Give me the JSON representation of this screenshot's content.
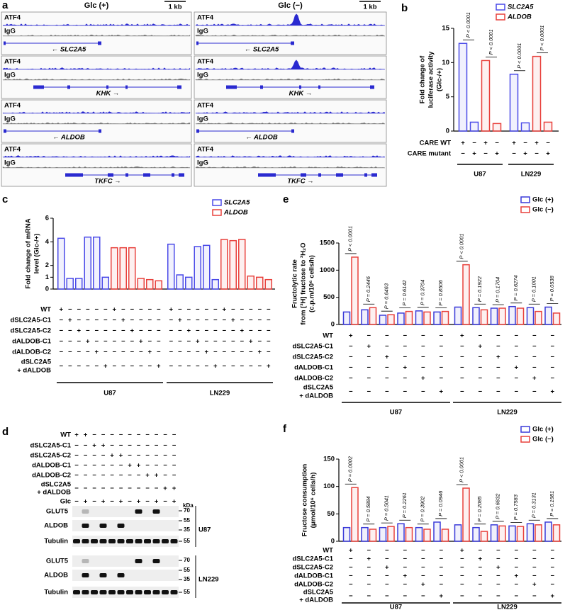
{
  "panel_a": {
    "panel": "a",
    "columns": [
      {
        "title": "Glc (+)",
        "scale": "1 kb"
      },
      {
        "title": "Glc (−)",
        "scale": "1 kb"
      }
    ],
    "tracks": [
      "ATF4",
      "IgG"
    ],
    "genes": [
      "← SLC2A5",
      "KHK →",
      "← ALDOB",
      "TKFC →"
    ]
  },
  "panel_d": {
    "panel": "d",
    "conditions": [
      {
        "label": "WT",
        "signs": [
          "+",
          "+",
          "−",
          "−",
          "−",
          "−",
          "−",
          "−",
          "−",
          "−",
          "−",
          "−"
        ]
      },
      {
        "label": "dSLC2A5-C1",
        "signs": [
          "−",
          "−",
          "+",
          "+",
          "−",
          "−",
          "−",
          "−",
          "−",
          "−",
          "−",
          "−"
        ]
      },
      {
        "label": "dSLC2A5-C2",
        "signs": [
          "−",
          "−",
          "−",
          "−",
          "+",
          "+",
          "−",
          "−",
          "−",
          "−",
          "−",
          "−"
        ]
      },
      {
        "label": "dALDOB-C1",
        "signs": [
          "−",
          "−",
          "−",
          "−",
          "−",
          "−",
          "+",
          "+",
          "−",
          "−",
          "−",
          "−"
        ]
      },
      {
        "label": "dALDOB-C2",
        "signs": [
          "−",
          "−",
          "−",
          "−",
          "−",
          "−",
          "−",
          "−",
          "+",
          "+",
          "−",
          "−"
        ]
      },
      {
        "label": [
          "dSLC2A5",
          "+ dALDOB"
        ],
        "signs": [
          "−",
          "−",
          "−",
          "−",
          "−",
          "−",
          "−",
          "−",
          "−",
          "−",
          "+",
          "+"
        ]
      },
      {
        "label": "Glc",
        "signs": [
          "−",
          "+",
          "−",
          "+",
          "−",
          "+",
          "−",
          "+",
          "−",
          "+",
          "−",
          "+"
        ]
      }
    ],
    "bands": [
      "GLUT5",
      "ALDOB",
      "Tubulin"
    ],
    "unit": "kDa",
    "markers": [
      70,
      55,
      35,
      55
    ],
    "cells": [
      "U87",
      "LN229"
    ]
  },
  "chart_data": [
    {
      "type": "bar",
      "panel": "b",
      "ylabel": [
        "Fold change of",
        "luciferase activity",
        "(Glc-/+)"
      ],
      "ylim": [
        0,
        15
      ],
      "yticks": [
        0,
        5,
        10,
        15
      ],
      "series": [
        {
          "name": "SLC2A5",
          "color": "#4a4ae8",
          "values": [
            12.8,
            1.3,
            8.3,
            1.2
          ]
        },
        {
          "name": "ALDOB",
          "color": "#e8413c",
          "values": [
            10.3,
            1.1,
            10.9,
            1.3
          ]
        }
      ],
      "annotations": [
        "P < 0.0001",
        "P < 0.0001",
        "P < 0.0001",
        "P < 0.0001"
      ],
      "conditions": [
        {
          "label": "CARE WT",
          "signs": [
            "+",
            "−",
            "+",
            "−",
            "+",
            "−",
            "+",
            "−"
          ]
        },
        {
          "label": "CARE mutant",
          "signs": [
            "−",
            "+",
            "−",
            "+",
            "−",
            "+",
            "−",
            "+"
          ]
        }
      ],
      "groups": [
        "U87",
        "LN229"
      ]
    },
    {
      "type": "bar",
      "panel": "c",
      "ylabel": [
        "Fold change of mRNA",
        "level (Glc-/+)"
      ],
      "ylim": [
        0,
        6
      ],
      "yticks": [
        0,
        1,
        2,
        4,
        6
      ],
      "series": [
        {
          "name": "SLC2A5",
          "color": "#4a4ae8",
          "values": [
            4.3,
            0.9,
            0.9,
            4.4,
            4.4,
            1.0,
            3.8,
            1.2,
            1.0,
            3.6,
            3.7,
            0.8
          ]
        },
        {
          "name": "ALDOB",
          "color": "#e8413c",
          "values": [
            3.5,
            3.5,
            3.5,
            0.9,
            0.8,
            0.7,
            4.2,
            4.1,
            4.2,
            1.1,
            1.0,
            0.8
          ]
        }
      ],
      "conditions": [
        {
          "label": "WT",
          "signs": [
            "+",
            "−",
            "−",
            "−",
            "−",
            "−",
            "+",
            "−",
            "−",
            "−",
            "−",
            "−",
            "+",
            "−",
            "−",
            "−",
            "−",
            "−",
            "+",
            "−",
            "−",
            "−",
            "−",
            "−"
          ]
        },
        {
          "label": "dSLC2A5-C1",
          "signs": [
            "−",
            "+",
            "−",
            "−",
            "−",
            "−",
            "−",
            "+",
            "−",
            "−",
            "−",
            "−",
            "−",
            "+",
            "−",
            "−",
            "−",
            "−",
            "−",
            "+",
            "−",
            "−",
            "−",
            "−"
          ]
        },
        {
          "label": "dSLC2A5-C2",
          "signs": [
            "−",
            "−",
            "+",
            "−",
            "−",
            "−",
            "−",
            "−",
            "+",
            "−",
            "−",
            "−",
            "−",
            "−",
            "+",
            "−",
            "−",
            "−",
            "−",
            "−",
            "+",
            "−",
            "−",
            "−"
          ]
        },
        {
          "label": "dALDOB-C1",
          "signs": [
            "−",
            "−",
            "−",
            "+",
            "−",
            "−",
            "−",
            "−",
            "−",
            "+",
            "−",
            "−",
            "−",
            "−",
            "−",
            "+",
            "−",
            "−",
            "−",
            "−",
            "−",
            "+",
            "−",
            "−"
          ]
        },
        {
          "label": "dALDOB-C2",
          "signs": [
            "−",
            "−",
            "−",
            "−",
            "+",
            "−",
            "−",
            "−",
            "−",
            "−",
            "+",
            "−",
            "−",
            "−",
            "−",
            "−",
            "+",
            "−",
            "−",
            "−",
            "−",
            "−",
            "+",
            "−"
          ]
        },
        {
          "label": [
            "dSLC2A5",
            "+ dALDOB"
          ],
          "signs": [
            "−",
            "−",
            "−",
            "−",
            "−",
            "+",
            "−",
            "−",
            "−",
            "−",
            "−",
            "+",
            "−",
            "−",
            "−",
            "−",
            "−",
            "+",
            "−",
            "−",
            "−",
            "−",
            "−",
            "+"
          ]
        }
      ],
      "groups": [
        "U87",
        "LN229"
      ]
    },
    {
      "type": "bar",
      "panel": "e",
      "ylabel": [
        "Fructolytic rate",
        "from [³H] fructose to ³H₂O",
        "(c.p.m/10⁶ cells/h)"
      ],
      "ylim": [
        0,
        1500
      ],
      "yticks": [
        0,
        500,
        1000,
        1500
      ],
      "series": [
        {
          "name": "Glc (+)",
          "color": "#3a3ad8",
          "values": [
            230,
            270,
            170,
            210,
            250,
            230,
            320,
            310,
            300,
            330,
            310,
            320
          ]
        },
        {
          "name": "Glc (−)",
          "color": "#e8413c",
          "values": [
            1240,
            310,
            180,
            240,
            230,
            240,
            1100,
            270,
            300,
            300,
            240,
            210
          ]
        }
      ],
      "annotations": [
        "P < 0.0001",
        "P = 0.2446",
        "P = 0.6463",
        "P = 0.6142",
        "P = 0.3704",
        "P = 0.8506",
        "P < 0.0001",
        "P = 0.1922",
        "P = 0.1704",
        "P = 0.6274",
        "P = 0.1001",
        "P = 0.0538"
      ],
      "conditions": [
        {
          "label": "WT",
          "signs": [
            "+",
            "−",
            "−",
            "−",
            "−",
            "−",
            "+",
            "−",
            "−",
            "−",
            "−",
            "−"
          ]
        },
        {
          "label": "dSLC2A5-C1",
          "signs": [
            "−",
            "+",
            "−",
            "−",
            "−",
            "−",
            "−",
            "+",
            "−",
            "−",
            "−",
            "−"
          ]
        },
        {
          "label": "dSLC2A5-C2",
          "signs": [
            "−",
            "−",
            "+",
            "−",
            "−",
            "−",
            "−",
            "−",
            "+",
            "−",
            "−",
            "−"
          ]
        },
        {
          "label": "dALDOB-C1",
          "signs": [
            "−",
            "−",
            "−",
            "+",
            "−",
            "−",
            "−",
            "−",
            "−",
            "+",
            "−",
            "−"
          ]
        },
        {
          "label": "dALDOB-C2",
          "signs": [
            "−",
            "−",
            "−",
            "−",
            "+",
            "−",
            "−",
            "−",
            "−",
            "−",
            "+",
            "−"
          ]
        },
        {
          "label": [
            "dSLC2A5",
            "+ dALDOB"
          ],
          "signs": [
            "−",
            "−",
            "−",
            "−",
            "−",
            "+",
            "−",
            "−",
            "−",
            "−",
            "−",
            "+"
          ]
        }
      ],
      "groups": [
        "U87",
        "LN229"
      ]
    },
    {
      "type": "bar",
      "panel": "f",
      "ylabel": [
        "Fructose consumption",
        "(μmol/10⁶ cells/h)"
      ],
      "ylim": [
        0,
        150
      ],
      "yticks": [
        0,
        50,
        100,
        150
      ],
      "series": [
        {
          "name": "Glc (+)",
          "color": "#3a3ad8",
          "values": [
            25,
            25,
            25,
            32,
            25,
            35,
            30,
            25,
            30,
            28,
            32,
            35
          ]
        },
        {
          "name": "Glc (−)",
          "color": "#e8413c",
          "values": [
            98,
            22,
            27,
            25,
            22,
            22,
            97,
            18,
            28,
            27,
            30,
            30
          ]
        }
      ],
      "annotations": [
        "P = 0.0002",
        "P = 0.5884",
        "P = 0.5041",
        "P = 0.2261",
        "P = 0.3902",
        "P = 0.0946",
        "P < 0.0001",
        "P = 0.2085",
        "P = 0.6832",
        "P = 0.7583",
        "P = 0.3131",
        "P = 0.1981"
      ],
      "conditions": [
        {
          "label": "WT",
          "signs": [
            "+",
            "−",
            "−",
            "−",
            "−",
            "−",
            "+",
            "−",
            "−",
            "−",
            "−",
            "−"
          ]
        },
        {
          "label": "dSLC2A5-C1",
          "signs": [
            "−",
            "+",
            "−",
            "−",
            "−",
            "−",
            "−",
            "+",
            "−",
            "−",
            "−",
            "−"
          ]
        },
        {
          "label": "dSLC2A5-C2",
          "signs": [
            "−",
            "−",
            "+",
            "−",
            "−",
            "−",
            "−",
            "−",
            "+",
            "−",
            "−",
            "−"
          ]
        },
        {
          "label": "dALDOB-C1",
          "signs": [
            "−",
            "−",
            "−",
            "+",
            "−",
            "−",
            "−",
            "−",
            "−",
            "+",
            "−",
            "−"
          ]
        },
        {
          "label": "dALDOB-C2",
          "signs": [
            "−",
            "−",
            "−",
            "−",
            "+",
            "−",
            "−",
            "−",
            "−",
            "−",
            "+",
            "−"
          ]
        },
        {
          "label": [
            "dSLC2A5",
            "+ dALDOB"
          ],
          "signs": [
            "−",
            "−",
            "−",
            "−",
            "−",
            "+",
            "−",
            "−",
            "−",
            "−",
            "−",
            "+"
          ]
        }
      ],
      "groups": [
        "U87",
        "LN229"
      ]
    }
  ]
}
